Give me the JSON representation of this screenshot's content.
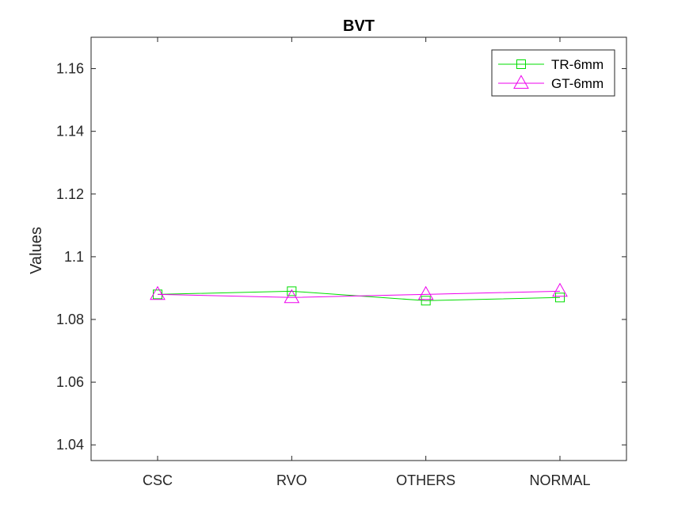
{
  "chart_data": {
    "type": "line",
    "title": "BVT",
    "xlabel": "",
    "ylabel": "Values",
    "categories": [
      "CSC",
      "RVO",
      "OTHERS",
      "NORMAL"
    ],
    "ylim": [
      1.035,
      1.17
    ],
    "yticks": [
      1.04,
      1.06,
      1.08,
      1.1,
      1.12,
      1.14,
      1.16
    ],
    "ytick_labels": [
      "1.04",
      "1.06",
      "1.08",
      "1.1",
      "1.12",
      "1.14",
      "1.16"
    ],
    "grid": false,
    "legend_position": "top-right",
    "series": [
      {
        "name": "TR-6mm",
        "marker": "square",
        "color": "#00dd00",
        "values": [
          1.088,
          1.089,
          1.086,
          1.087
        ]
      },
      {
        "name": "GT-6mm",
        "marker": "triangle",
        "color": "#ee00ee",
        "values": [
          1.088,
          1.087,
          1.088,
          1.089
        ]
      }
    ]
  }
}
